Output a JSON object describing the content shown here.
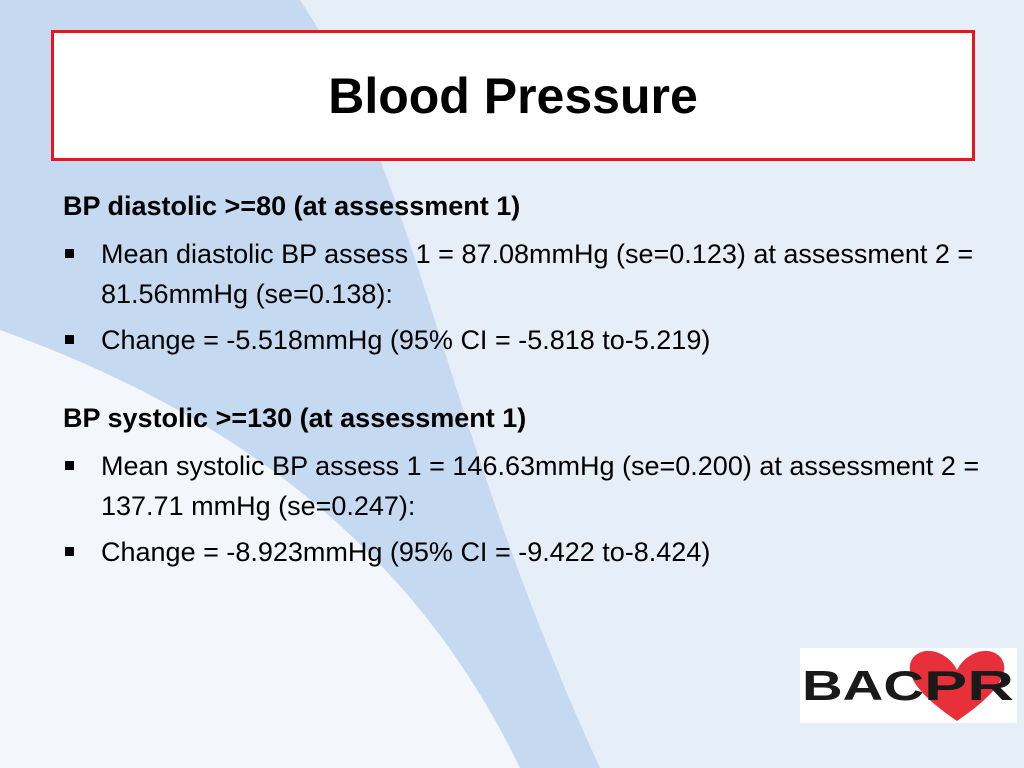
{
  "slide": {
    "title": "Blood Pressure",
    "sections": [
      {
        "heading": "BP diastolic >=80 (at assessment 1)",
        "bullets": [
          "Mean diastolic BP assess 1 = 87.08mmHg (se=0.123) at assessment 2 = 81.56mmHg (se=0.138):",
          "Change = -5.518mmHg (95% CI = -5.818 to-5.219)"
        ]
      },
      {
        "heading": "BP systolic >=130 (at assessment 1)",
        "bullets": [
          "Mean systolic BP assess 1 = 146.63mmHg (se=0.200) at assessment 2 = 137.71 mmHg (se=0.247):",
          "Change = -8.923mmHg (95% CI = -9.422 to-8.424)"
        ]
      }
    ]
  },
  "logo": {
    "text_left": "BAC",
    "text_heart": "PR",
    "heart_color": "#e8303a"
  },
  "colors": {
    "title_border": "#e8141e",
    "background": "#e6eef8",
    "background_shape": "#c5d9f0"
  }
}
